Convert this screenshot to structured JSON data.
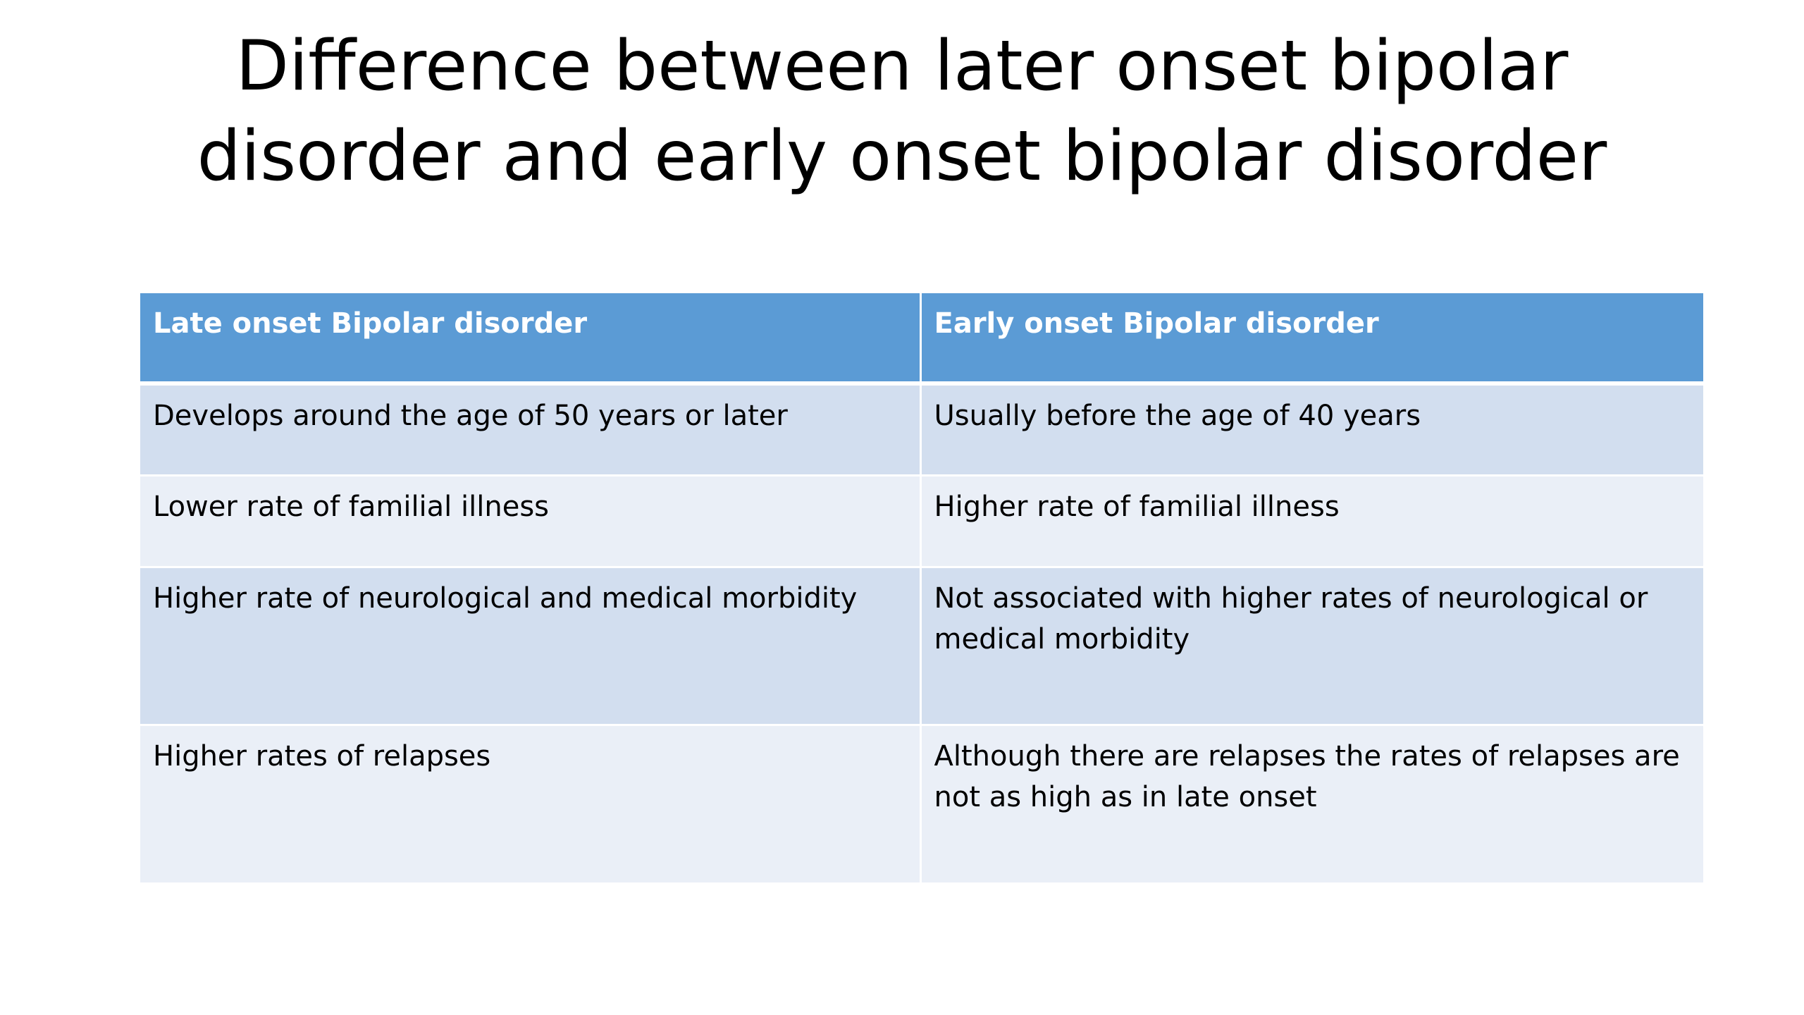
{
  "slide": {
    "title_line1": "Difference between later onset bipolar",
    "title_line2": "disorder and early onset bipolar disorder"
  },
  "table": {
    "headers": [
      "Late onset Bipolar disorder",
      "Early onset Bipolar disorder"
    ],
    "rows": [
      [
        "Develops around the age of 50 years or later",
        "Usually before the age of 40 years"
      ],
      [
        "Lower rate of familial illness",
        "Higher rate of familial illness"
      ],
      [
        "Higher rate of neurological and medical morbidity",
        "Not associated with higher rates of neurological or medical morbidity"
      ],
      [
        "Higher rates of relapses",
        "Although there are relapses the rates of relapses are not as high as in late onset"
      ]
    ]
  },
  "colors": {
    "header_bg": "#5b9bd5",
    "row_odd_bg": "#d2deef",
    "row_even_bg": "#eaeff7"
  }
}
